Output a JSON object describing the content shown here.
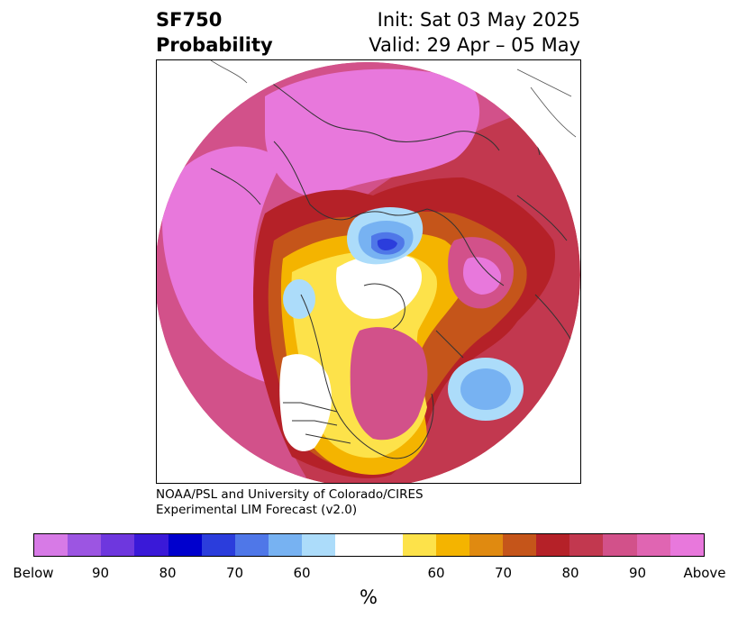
{
  "title": {
    "variable": "SF750",
    "metric": "Probability",
    "init": "Init: Sat 03 May 2025",
    "valid": "Valid: 29 Apr – 05 May"
  },
  "credit": {
    "line1": "NOAA/PSL and University of Colorado/CIRES",
    "line2": "Experimental LIM Forecast (v2.0)"
  },
  "colorbar": {
    "unit": "%",
    "colors": [
      "#d77ae6",
      "#9c55e2",
      "#6e37de",
      "#3a19d8",
      "#0000cd",
      "#2b3ddc",
      "#4f77e8",
      "#77b2f2",
      "#acdcfa",
      "#ffffff",
      "#ffffff",
      "#fde24a",
      "#f4b400",
      "#e08a10",
      "#c5551a",
      "#b52128",
      "#c2384f",
      "#d2518a",
      "#e065b2",
      "#e878dc"
    ],
    "labels": [
      "Below",
      "90",
      "80",
      "70",
      "60",
      "60",
      "70",
      "80",
      "90",
      "Above"
    ]
  },
  "map": {
    "projection": "north-polar-stereographic",
    "colors": {
      "above_max": "#e878dc",
      "above_90": "#d2518a",
      "above_80": "#b52128",
      "above_70": "#c5551a",
      "above_60": "#f4b400",
      "above_55": "#fde24a",
      "neutral": "#ffffff",
      "below_55": "#acdcfa",
      "below_60": "#77b2f2",
      "below_70": "#4f77e8",
      "below_80": "#2b3ddc",
      "coastline": "#333333"
    }
  }
}
